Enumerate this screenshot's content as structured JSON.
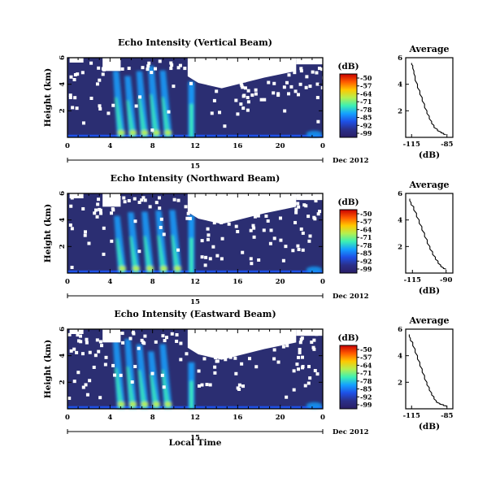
{
  "figure": {
    "xlabel": "Local Time",
    "colorbar_unit": "(dB)",
    "colorbar_ticks": [
      "-50",
      "-57",
      "-64",
      "-71",
      "-78",
      "-85",
      "-92",
      "-99"
    ],
    "colorbar_colors": [
      "#c80000",
      "#ff5a00",
      "#ffc800",
      "#b4f050",
      "#3cf0b4",
      "#14a0ff",
      "#1e50e6",
      "#2a2f8a",
      "#2a1e66"
    ],
    "missing_color": "#ffffff",
    "background_color": "#2b2e72",
    "date_day": "15",
    "date_label": "Dec 2012",
    "avg_title": "Average",
    "avg_xlabel": "(dB)"
  },
  "panels": [
    {
      "title": "Echo Intensity (Vertical Beam)",
      "ylabel": "Height (km)",
      "avg_xticks": [
        "-115",
        "-85"
      ],
      "avg_xlim": [
        -120,
        -80
      ]
    },
    {
      "title": "Echo Intensity (Northward Beam)",
      "ylabel": "Height (km)",
      "avg_xticks": [
        "-115",
        "-90"
      ],
      "avg_xlim": [
        -120,
        -85
      ]
    },
    {
      "title": "Echo Intensity (Eastward Beam)",
      "ylabel": "Height (km)",
      "avg_xticks": [
        "-115",
        "-85"
      ],
      "avg_xlim": [
        -120,
        -80
      ]
    }
  ],
  "chart_data": [
    {
      "type": "heatmap",
      "title": "Echo Intensity (Vertical Beam)",
      "ylabel": "Height (km)",
      "x_ticks": [
        "0",
        "4",
        "8",
        "12",
        "16",
        "20",
        "0"
      ],
      "y_ticks": [
        "2",
        "4",
        "6"
      ],
      "xlim": [
        0,
        24
      ],
      "ylim": [
        0,
        6
      ],
      "clim": [
        -99,
        -50
      ],
      "features": [
        {
          "desc": "rain plumes",
          "time_start": 4.5,
          "time_end": 10,
          "top_km": 5.5,
          "peak_dB": -64
        },
        {
          "desc": "narrow plume",
          "time_start": 11.3,
          "time_end": 12,
          "top_km": 4.2,
          "peak_dB": -71
        }
      ]
    },
    {
      "type": "line",
      "title": "Average",
      "xlabel": "(dB)",
      "x_ticks": [
        "-115",
        "-85"
      ],
      "y_ticks": [
        "2",
        "4",
        "6"
      ],
      "xlim": [
        -120,
        -80
      ],
      "ylim": [
        0,
        6
      ],
      "series": [
        {
          "x": [
            -115,
            -114,
            -113,
            -112,
            -110,
            -108,
            -106,
            -104,
            -102,
            -100,
            -98,
            -96,
            -93,
            -90,
            -88,
            -86
          ],
          "y": [
            5.6,
            5.4,
            5.0,
            4.6,
            4.0,
            3.5,
            3.0,
            2.5,
            2.0,
            1.6,
            1.2,
            0.9,
            0.6,
            0.4,
            0.3,
            0.2
          ]
        }
      ]
    },
    {
      "type": "heatmap",
      "title": "Echo Intensity (Northward Beam)",
      "ylabel": "Height (km)",
      "x_ticks": [
        "0",
        "4",
        "8",
        "12",
        "16",
        "20",
        "0"
      ],
      "y_ticks": [
        "2",
        "4",
        "6"
      ],
      "xlim": [
        0,
        24
      ],
      "ylim": [
        0,
        6
      ],
      "clim": [
        -99,
        -50
      ],
      "features": [
        {
          "desc": "rain plumes",
          "time_start": 4.5,
          "time_end": 11,
          "top_km": 5.5,
          "peak_dB": -64
        },
        {
          "desc": "narrow plume",
          "time_start": 11.3,
          "time_end": 12,
          "top_km": 4.4,
          "peak_dB": -71
        }
      ]
    },
    {
      "type": "line",
      "title": "Average",
      "xlabel": "(dB)",
      "x_ticks": [
        "-115",
        "-90"
      ],
      "y_ticks": [
        "2",
        "4",
        "6"
      ],
      "xlim": [
        -120,
        -85
      ],
      "ylim": [
        0,
        6
      ],
      "series": [
        {
          "x": [
            -117,
            -116,
            -114,
            -112,
            -110,
            -108,
            -106,
            -104,
            -102,
            -100,
            -98,
            -96,
            -94,
            -92,
            -90
          ],
          "y": [
            5.6,
            5.3,
            5.0,
            4.5,
            4.0,
            3.5,
            3.0,
            2.5,
            2.0,
            1.6,
            1.2,
            0.9,
            0.6,
            0.4,
            0.3
          ]
        }
      ]
    },
    {
      "type": "heatmap",
      "title": "Echo Intensity (Eastward Beam)",
      "ylabel": "Height (km)",
      "x_ticks": [
        "0",
        "4",
        "8",
        "12",
        "16",
        "20",
        "0"
      ],
      "y_ticks": [
        "2",
        "4",
        "6"
      ],
      "xlim": [
        0,
        24
      ],
      "ylim": [
        0,
        6
      ],
      "clim": [
        -99,
        -50
      ],
      "features": [
        {
          "desc": "rain plumes",
          "time_start": 4.5,
          "time_end": 10,
          "top_km": 5.5,
          "peak_dB": -64
        },
        {
          "desc": "narrow plume",
          "time_start": 11.3,
          "time_end": 12,
          "top_km": 3.5,
          "peak_dB": -71
        }
      ]
    },
    {
      "type": "line",
      "title": "Average",
      "xlabel": "(dB)",
      "x_ticks": [
        "-115",
        "-85"
      ],
      "y_ticks": [
        "2",
        "4",
        "6"
      ],
      "xlim": [
        -120,
        -80
      ],
      "ylim": [
        0,
        6
      ],
      "series": [
        {
          "x": [
            -117,
            -116,
            -114,
            -112,
            -110,
            -108,
            -106,
            -104,
            -102,
            -100,
            -98,
            -96,
            -94,
            -91,
            -88,
            -85
          ],
          "y": [
            5.6,
            5.3,
            5.0,
            4.5,
            4.0,
            3.5,
            3.0,
            2.5,
            2.0,
            1.6,
            1.2,
            0.9,
            0.6,
            0.4,
            0.3,
            0.2
          ]
        }
      ]
    }
  ]
}
